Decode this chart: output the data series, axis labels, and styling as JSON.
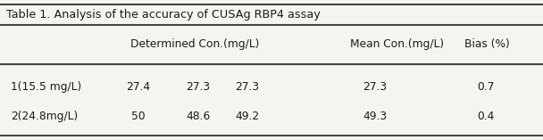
{
  "title": "Table 1. Analysis of the accuracy of CUSAg RBP4 assay",
  "col_headers": [
    "",
    "Determined Con.(mg/L)",
    "Mean Con.(mg/L)",
    "Bias (%)"
  ],
  "det_values_row1": [
    "27.4",
    "27.3",
    "27.3"
  ],
  "det_values_row2": [
    "50",
    "48.6",
    "49.2"
  ],
  "rows": [
    [
      "1(15.5 mg/L)",
      "27.3",
      "0.7"
    ],
    [
      "2(24.8mg/L)",
      "49.3",
      "0.4"
    ]
  ],
  "background_color": "#f5f5f0",
  "text_color": "#1a1a1a",
  "line_color": "#444444",
  "title_fontsize": 9.2,
  "header_fontsize": 8.8,
  "cell_fontsize": 8.8
}
